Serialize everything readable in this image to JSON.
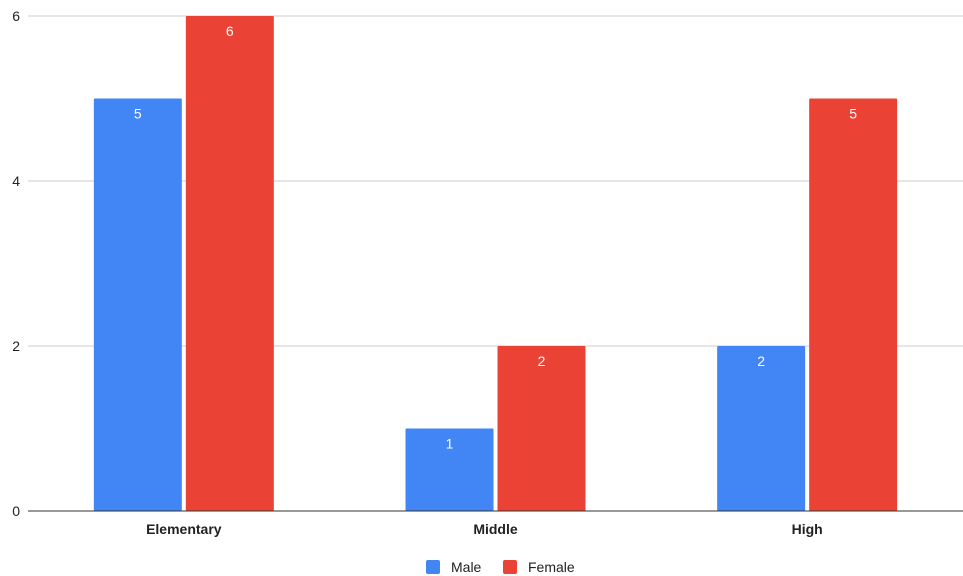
{
  "chart_data": {
    "type": "bar",
    "categories": [
      "Elementary",
      "Middle",
      "High"
    ],
    "series": [
      {
        "name": "Male",
        "values": [
          5,
          1,
          2
        ],
        "color": "#4285f4"
      },
      {
        "name": "Female",
        "values": [
          6,
          2,
          5
        ],
        "color": "#ea4335"
      }
    ],
    "ylim": [
      0,
      6
    ],
    "yticks": [
      0,
      2,
      4,
      6
    ],
    "grid": true,
    "legend": "bottom",
    "data_labels": true
  }
}
